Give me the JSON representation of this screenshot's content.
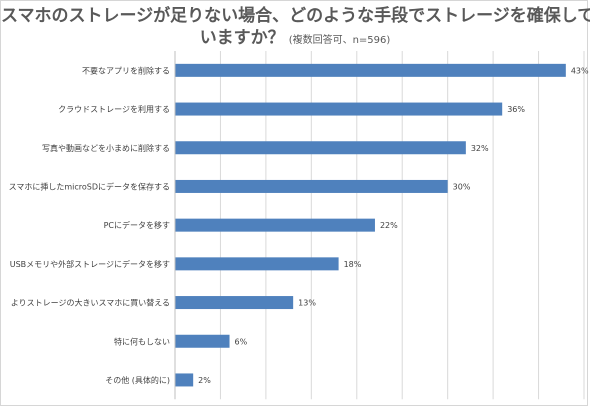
{
  "chart_data": {
    "type": "bar",
    "orientation": "horizontal",
    "title_line1": "スマホのストレージが足りない場合、どのような手段でストレージを確保して",
    "title_line2": "いますか？",
    "subtitle": "(複数回答可、n=596)",
    "categories": [
      "不要なアプリを削除する",
      "クラウドストレージを利用する",
      "写真や動画などを小まめに削除する",
      "スマホに挿したmicroSDにデータを保存する",
      "PCにデータを移す",
      "USBメモリや外部ストレージにデータを移す",
      "よりストレージの大きいスマホに買い替える",
      "特に何もしない",
      "その他 (具体的に)"
    ],
    "values": [
      43,
      36,
      32,
      30,
      22,
      18,
      13,
      6,
      2
    ],
    "value_labels": [
      "43%",
      "36%",
      "32%",
      "30%",
      "22%",
      "18%",
      "13%",
      "6%",
      "2%"
    ],
    "xlim": [
      0,
      45
    ],
    "grid": true,
    "bar_color": "#4f81bd",
    "grid_color": "#d9d9d9"
  }
}
